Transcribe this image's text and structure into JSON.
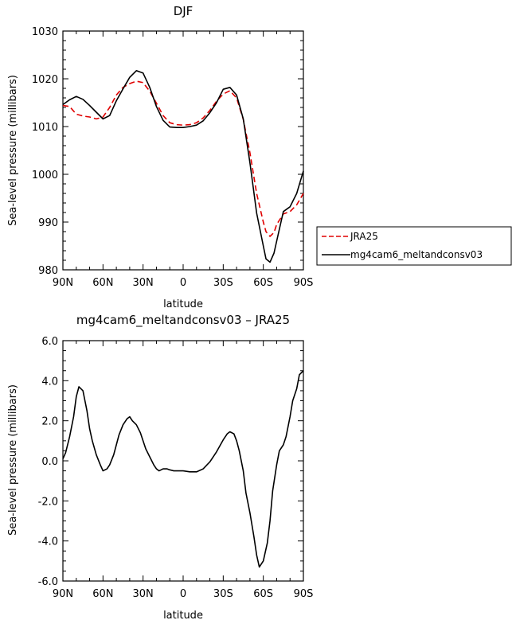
{
  "chart_data": [
    {
      "type": "line",
      "title": "DJF",
      "xlabel": "latitude",
      "ylabel": "Sea-level pressure (millibars)",
      "x_ticks": [
        "90N",
        "60N",
        "30N",
        "0",
        "30S",
        "60S",
        "90S"
      ],
      "y_ticks": [
        "980",
        "990",
        "1000",
        "1010",
        "1020",
        "1030"
      ],
      "xlim": [
        90,
        -90
      ],
      "ylim": [
        980,
        1030
      ],
      "grid": false,
      "legend_position": "right",
      "series": [
        {
          "name": "JRA25",
          "color": "#e00000",
          "dash": "dashed",
          "x": [
            90,
            85,
            80,
            75,
            70,
            65,
            60,
            55,
            50,
            45,
            40,
            35,
            30,
            25,
            20,
            15,
            10,
            5,
            0,
            -5,
            -10,
            -15,
            -20,
            -25,
            -30,
            -35,
            -40,
            -45,
            -50,
            -55,
            -60,
            -62,
            -65,
            -68,
            -70,
            -75,
            -80,
            -85,
            -90
          ],
          "y": [
            1014.4,
            1014.2,
            1012.6,
            1012.2,
            1012.0,
            1011.6,
            1012.0,
            1014.0,
            1016.6,
            1018.2,
            1019.0,
            1019.5,
            1019.2,
            1017.4,
            1014.9,
            1012.3,
            1010.8,
            1010.4,
            1010.3,
            1010.4,
            1010.8,
            1011.8,
            1013.4,
            1015.3,
            1016.8,
            1017.5,
            1016.0,
            1011.5,
            1004.5,
            996.0,
            990.0,
            988.0,
            987.0,
            987.8,
            989.5,
            991.7,
            992.2,
            993.6,
            996.0
          ]
        },
        {
          "name": "mg4cam6_meltandconsv03",
          "color": "#000000",
          "dash": "solid",
          "x": [
            90,
            85,
            80,
            75,
            70,
            65,
            60,
            55,
            50,
            45,
            40,
            35,
            30,
            25,
            20,
            15,
            10,
            5,
            0,
            -5,
            -10,
            -15,
            -20,
            -25,
            -30,
            -35,
            -40,
            -45,
            -50,
            -55,
            -60,
            -62,
            -65,
            -68,
            -70,
            -75,
            -80,
            -85,
            -90
          ],
          "y": [
            1014.6,
            1015.6,
            1016.3,
            1015.7,
            1014.4,
            1013.0,
            1011.6,
            1012.3,
            1015.4,
            1017.9,
            1020.3,
            1021.7,
            1021.2,
            1018.2,
            1014.2,
            1011.3,
            1009.9,
            1009.8,
            1009.8,
            1010.0,
            1010.3,
            1011.2,
            1012.9,
            1015.0,
            1017.8,
            1018.2,
            1016.6,
            1011.6,
            1002.4,
            991.9,
            985.0,
            982.3,
            981.6,
            983.5,
            986.0,
            992.2,
            993.2,
            996.0,
            1000.7
          ]
        }
      ]
    },
    {
      "type": "line",
      "title": "mg4cam6_meltandconsv03 – JRA25",
      "xlabel": "latitude",
      "ylabel": "Sea-level pressure (millibars)",
      "x_ticks": [
        "90N",
        "60N",
        "30N",
        "0",
        "30S",
        "60S",
        "90S"
      ],
      "y_ticks": [
        "-6.0",
        "-4.0",
        "-2.0",
        "0.0",
        "2.0",
        "4.0",
        "6.0"
      ],
      "xlim": [
        90,
        -90
      ],
      "ylim": [
        -6,
        6
      ],
      "grid": false,
      "series": [
        {
          "color": "#000000",
          "dash": "solid",
          "x": [
            90,
            88,
            85,
            82,
            80,
            78,
            75,
            72,
            70,
            68,
            65,
            62,
            60,
            57,
            55,
            52,
            50,
            48,
            45,
            42,
            40,
            38,
            35,
            32,
            30,
            28,
            25,
            22,
            20,
            18,
            15,
            12,
            10,
            7,
            5,
            2,
            0,
            -5,
            -10,
            -15,
            -20,
            -25,
            -30,
            -33,
            -35,
            -38,
            -40,
            -42,
            -45,
            -47,
            -50,
            -53,
            -55,
            -57,
            -60,
            -63,
            -65,
            -67,
            -70,
            -72,
            -75,
            -77,
            -80,
            -82,
            -85,
            -87,
            -90
          ],
          "y": [
            0.1,
            0.4,
            1.2,
            2.2,
            3.2,
            3.7,
            3.5,
            2.5,
            1.6,
            1.0,
            0.3,
            -0.2,
            -0.5,
            -0.4,
            -0.2,
            0.3,
            0.8,
            1.3,
            1.8,
            2.1,
            2.2,
            2.0,
            1.8,
            1.4,
            1.0,
            0.6,
            0.2,
            -0.2,
            -0.4,
            -0.5,
            -0.4,
            -0.4,
            -0.45,
            -0.5,
            -0.5,
            -0.5,
            -0.5,
            -0.55,
            -0.55,
            -0.4,
            -0.05,
            0.45,
            1.05,
            1.35,
            1.45,
            1.35,
            1.0,
            0.5,
            -0.5,
            -1.6,
            -2.6,
            -3.8,
            -4.7,
            -5.3,
            -5.0,
            -4.1,
            -3.0,
            -1.5,
            -0.2,
            0.5,
            0.8,
            1.2,
            2.2,
            3.0,
            3.6,
            4.3,
            4.5
          ]
        }
      ]
    }
  ]
}
